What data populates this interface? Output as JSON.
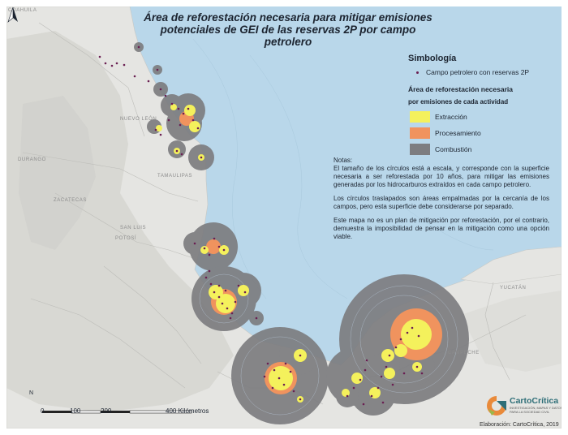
{
  "map": {
    "title_line1": "Área de reforestación necesaria para mitigar emisiones",
    "title_line2": "potenciales de GEI de las reservas 2P por campo petrolero",
    "colors": {
      "sea": "#b9d7ea",
      "land": "#e5e5e2",
      "land_relief": "#d4d4d0",
      "combustion": "#7d7d80",
      "procesamiento": "#f0935e",
      "extraccion": "#f4f15c",
      "field_point": "#6a1f52"
    }
  },
  "legend": {
    "heading": "Simbología",
    "point_label": "Campo petrolero con reservas 2P",
    "subheading_line1": "Área de reforestación necesaria",
    "subheading_line2": "por emisiones de cada actividad",
    "items": [
      {
        "label": "Extracción",
        "color": "#f4f15c"
      },
      {
        "label": "Procesamiento",
        "color": "#f0935e"
      },
      {
        "label": "Combustión",
        "color": "#7d7d80"
      }
    ]
  },
  "notes": {
    "heading": "Notas:",
    "p1": "El tamaño de los círculos está a escala, y corresponde con la superficie necesaria a ser reforestada por 10 años, para mitigar las emisiones generadas por los hidrocarburos extraídos en cada campo petrolero.",
    "p2": "Los círculos traslapados son áreas empalmadas por la cercanía de los campos, pero esta superficie debe considerarse por separado.",
    "p3": "Este mapa no es un plan de mitigación por reforestación, por el contrario, demuestra la imposibilidad de pensar en la mitigación como una opción viable."
  },
  "places": {
    "coahuila": "COAHUILA",
    "nuevo_leon": "NUEVO LEÓN",
    "tamaulipas": "TAMAULIPAS",
    "durango": "DURANGO",
    "zacatecas": "ZACATECAS",
    "san_luis": "SAN LUIS",
    "potosi": "POTOSÍ",
    "yucatan": "YUCATÁN",
    "campeche": "CAMPECHE"
  },
  "scale": {
    "ticks": [
      "0",
      "100",
      "200",
      "400 Kilómetros"
    ]
  },
  "north_label": "N",
  "brand": {
    "name": "CartoCrítica",
    "tagline": "INVESTIGACIÓN, MAPAS Y DATOS PARA LA SOCIEDAD CIVIL",
    "credit": "Elaboración: CartoCrítica, 2019"
  }
}
